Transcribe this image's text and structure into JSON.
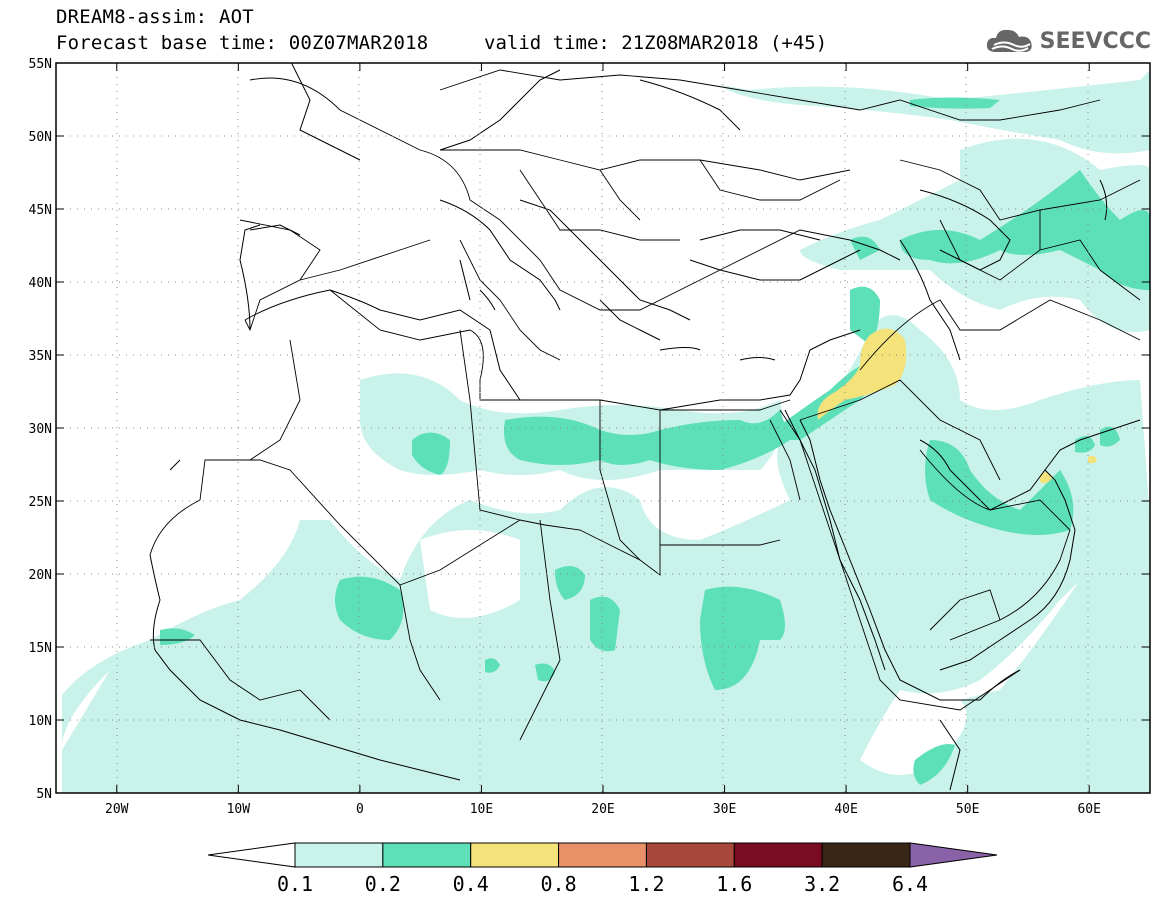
{
  "header": {
    "title": "DREAM8-assim: AOT",
    "base_time": "Forecast base time: 00Z07MAR2018",
    "valid_time": "valid time: 21Z08MAR2018 (+45)",
    "logo_text": "SEEVCCC",
    "logo_icon": "cloud-icon"
  },
  "map": {
    "lat_ticks": [
      "55N",
      "50N",
      "45N",
      "40N",
      "35N",
      "30N",
      "25N",
      "20N",
      "15N",
      "10N",
      "5N"
    ],
    "lon_ticks": [
      "20W",
      "10W",
      "0",
      "10E",
      "20E",
      "30E",
      "40E",
      "50E",
      "60E"
    ],
    "lat_range": [
      5,
      55
    ],
    "lon_range": [
      -25,
      65
    ],
    "grid": "dotted"
  },
  "colorbar": {
    "labels": [
      "0.1",
      "0.2",
      "0.4",
      "0.8",
      "1.2",
      "1.6",
      "3.2",
      "6.4"
    ],
    "colors": [
      "#ffffff",
      "#c8f2ea",
      "#5de0b8",
      "#f4e27a",
      "#e89068",
      "#a8483a",
      "#7a0c22",
      "#3a2616",
      "#8a62a8"
    ]
  }
}
